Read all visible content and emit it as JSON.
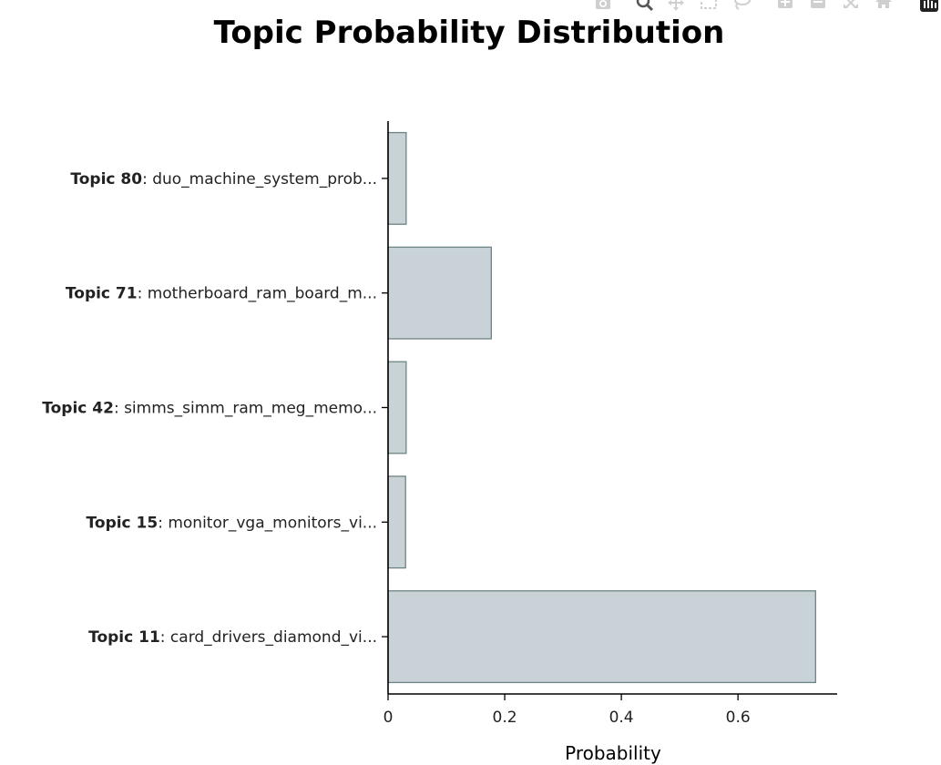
{
  "modebar": {
    "icons": [
      "camera-icon",
      "zoom-icon",
      "pan-icon",
      "box-select-icon",
      "lasso-select-icon",
      "zoom-in-icon",
      "zoom-out-icon",
      "autoscale-icon",
      "reset-axes-icon",
      "plotly-logo-icon"
    ]
  },
  "chart_data": {
    "type": "bar",
    "orientation": "horizontal",
    "title": "Topic Probability Distribution",
    "xlabel": "Probability",
    "ylabel": "",
    "xlim": [
      0,
      0.77
    ],
    "xticks": [
      0,
      0.2,
      0.4,
      0.6
    ],
    "xtick_labels": [
      "0",
      "0.2",
      "0.4",
      "0.6"
    ],
    "grid": false,
    "legend": "none",
    "bar_color": "#C8D2D7",
    "bar_edge_color": "#6E8484",
    "categories": [
      {
        "bold": "Topic 80",
        "rest": ": duo_machine_system_prob..."
      },
      {
        "bold": "Topic 71",
        "rest": ": motherboard_ram_board_m..."
      },
      {
        "bold": "Topic 42",
        "rest": ": simms_simm_ram_meg_memo..."
      },
      {
        "bold": "Topic 15",
        "rest": ": monitor_vga_monitors_vi..."
      },
      {
        "bold": "Topic 11",
        "rest": ": card_drivers_diamond_vi..."
      }
    ],
    "values": [
      0.031,
      0.177,
      0.031,
      0.03,
      0.733
    ]
  }
}
